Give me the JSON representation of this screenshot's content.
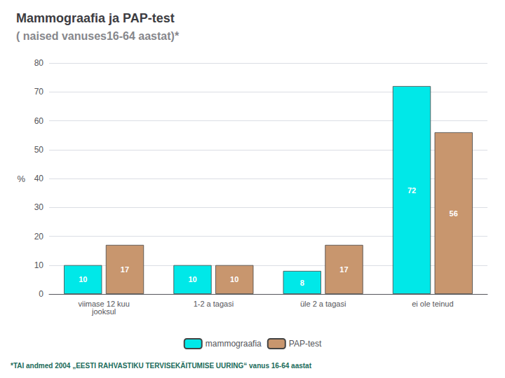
{
  "chart_data": {
    "type": "bar",
    "title": "Mammograafia ja PAP-test",
    "subtitle": "( naised vanuses16-64 aastat)*",
    "annotations": [
      "*TAI andmed 2004 „EESTI RAHVASTIKU TERVISEKÄITUMISE UURING“ vanus 16-64 aastat"
    ],
    "ylabel": "%",
    "categories": [
      "viimase 12 kuu\njooksul",
      "1-2 a tagasi",
      "üle 2 a tagasi",
      "ei ole teinud"
    ],
    "series": [
      {
        "name": "mammograafia",
        "color": "#00e8e8",
        "values": [
          10,
          10,
          8,
          72
        ]
      },
      {
        "name": "PAP-test",
        "color": "#c8966e",
        "values": [
          17,
          10,
          17,
          56
        ]
      }
    ],
    "ylim": [
      0,
      80
    ],
    "yticks": [
      0,
      10,
      20,
      30,
      40,
      50,
      60,
      70,
      80
    ],
    "grid": true,
    "legend": "bottom",
    "data_labels": true
  }
}
